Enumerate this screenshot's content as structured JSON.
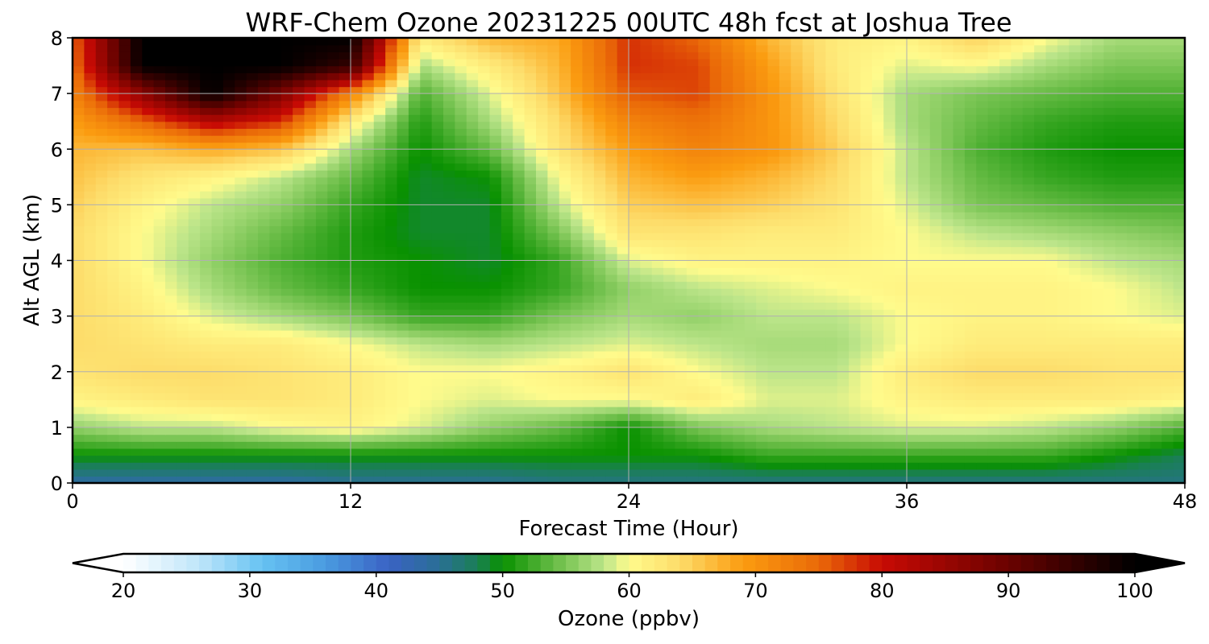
{
  "chart_data": {
    "type": "heatmap",
    "title": "WRF-Chem Ozone  20231225 00UTC 48h fcst at Joshua Tree",
    "xlabel": "Forecast Time (Hour)",
    "ylabel": "Alt AGL (km)",
    "xlim": [
      0,
      48
    ],
    "ylim": [
      0,
      8
    ],
    "x_ticks": [
      0,
      12,
      24,
      36,
      48
    ],
    "y_ticks": [
      0,
      1,
      2,
      3,
      4,
      5,
      6,
      7,
      8
    ],
    "grid": true,
    "x": [
      0,
      3,
      6,
      9,
      12,
      15,
      18,
      21,
      24,
      27,
      30,
      33,
      36,
      39,
      42,
      45,
      48
    ],
    "y": [
      0,
      0.5,
      1,
      1.5,
      2,
      2.5,
      3,
      3.5,
      4,
      4.5,
      5,
      5.5,
      6,
      6.5,
      7,
      7.5,
      8
    ],
    "z_rows_by_altitude": [
      [
        44,
        44,
        44,
        44,
        45,
        45,
        45,
        46,
        46,
        46,
        46,
        46,
        46,
        46,
        46,
        46,
        46
      ],
      [
        50,
        50,
        50,
        50,
        50,
        50,
        50,
        50,
        50,
        50,
        52,
        52,
        52,
        52,
        52,
        50,
        48
      ],
      [
        56,
        58,
        58,
        60,
        61,
        59,
        56,
        54,
        50,
        55,
        57,
        58,
        59,
        59,
        58,
        56,
        53
      ],
      [
        61,
        62,
        63,
        63,
        62,
        60,
        59,
        60,
        60,
        62,
        59,
        59,
        61,
        62,
        62,
        62,
        61
      ],
      [
        63,
        64,
        64,
        63,
        62,
        60,
        60,
        61,
        63,
        60,
        58,
        58,
        62,
        64,
        64,
        63,
        63
      ],
      [
        64,
        63,
        62,
        62,
        60,
        58,
        57,
        58,
        59,
        58,
        57,
        57,
        60,
        62,
        62,
        62,
        62
      ],
      [
        64,
        62,
        59,
        57,
        55,
        52,
        52,
        55,
        57,
        56,
        58,
        58,
        60,
        61,
        61,
        60,
        59
      ],
      [
        64,
        61,
        57,
        54,
        52,
        50,
        50,
        52,
        56,
        58,
        59,
        60,
        61,
        61,
        61,
        60,
        58
      ],
      [
        64,
        60,
        56,
        53,
        51,
        50,
        49,
        52,
        59,
        61,
        61,
        61,
        60,
        60,
        60,
        58,
        57
      ],
      [
        64,
        60,
        57,
        54,
        51,
        49,
        49,
        55,
        63,
        63,
        62,
        62,
        60,
        58,
        57,
        56,
        55
      ],
      [
        65,
        61,
        58,
        56,
        52,
        49,
        49,
        58,
        65,
        66,
        65,
        63,
        59,
        55,
        54,
        53,
        53
      ],
      [
        66,
        63,
        61,
        58,
        54,
        49,
        50,
        60,
        67,
        69,
        67,
        64,
        58,
        54,
        52,
        51,
        51
      ],
      [
        67,
        66,
        68,
        66,
        57,
        50,
        54,
        63,
        69,
        72,
        70,
        65,
        58,
        53,
        51,
        50,
        50
      ],
      [
        69,
        75,
        82,
        78,
        62,
        51,
        57,
        64,
        72,
        74,
        70,
        64,
        57,
        54,
        52,
        51,
        51
      ],
      [
        72,
        86,
        100,
        88,
        72,
        53,
        59,
        66,
        76,
        77,
        70,
        63,
        57,
        55,
        54,
        53,
        53
      ],
      [
        74,
        100,
        100,
        100,
        95,
        57,
        62,
        67,
        78,
        77,
        69,
        62,
        59,
        60,
        57,
        55,
        55
      ],
      [
        75,
        100,
        100,
        100,
        100,
        62,
        67,
        68,
        78,
        75,
        67,
        62,
        61,
        65,
        60,
        57,
        57
      ]
    ],
    "colorbar": {
      "label": "Ozone  (ppbv)",
      "min": 20,
      "max": 100,
      "ticks": [
        20,
        30,
        40,
        50,
        60,
        70,
        80,
        90,
        100
      ],
      "extend": "both",
      "stops": [
        {
          "value": 20,
          "color": "#ffffff"
        },
        {
          "value": 26,
          "color": "#bfe6fa"
        },
        {
          "value": 31,
          "color": "#66c2f2"
        },
        {
          "value": 36,
          "color": "#4a9be0"
        },
        {
          "value": 41,
          "color": "#3a62c4"
        },
        {
          "value": 45,
          "color": "#2a6f95"
        },
        {
          "value": 48,
          "color": "#1a7f55"
        },
        {
          "value": 50,
          "color": "#099100"
        },
        {
          "value": 54,
          "color": "#66bb44"
        },
        {
          "value": 58,
          "color": "#bce58a"
        },
        {
          "value": 60,
          "color": "#fffb8c"
        },
        {
          "value": 64,
          "color": "#fddc6a"
        },
        {
          "value": 69,
          "color": "#fb9c10"
        },
        {
          "value": 75,
          "color": "#ea6a08"
        },
        {
          "value": 80,
          "color": "#c80a04"
        },
        {
          "value": 90,
          "color": "#6a0200"
        },
        {
          "value": 100,
          "color": "#000000"
        }
      ]
    }
  }
}
